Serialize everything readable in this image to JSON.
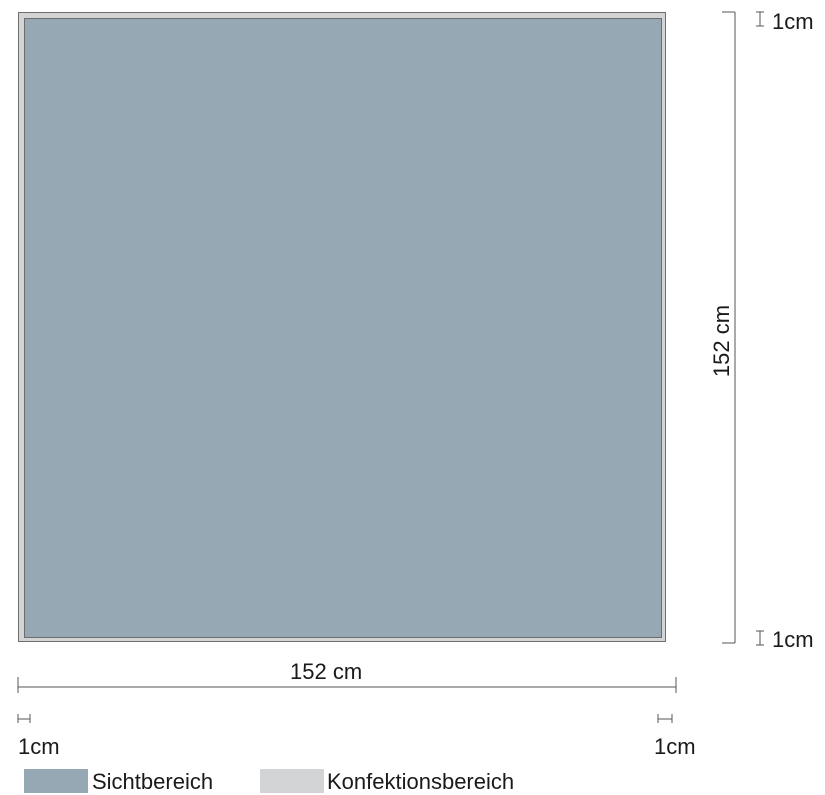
{
  "dimensions": {
    "width": {
      "value": 152,
      "label": "152 cm"
    },
    "height": {
      "value": 152,
      "label": "152 cm"
    },
    "margin_top": "1cm",
    "margin_bottom": "1cm",
    "margin_left": "1cm",
    "margin_right": "1cm"
  },
  "legend": [
    {
      "label": "Sichtbereich",
      "color": "#95a8b3"
    },
    {
      "label": "Konfektionsbereich",
      "color": "#d3d4d5"
    }
  ],
  "colors": {
    "visible_area": "#95a8b3",
    "finishing_area": "#d3d4d5",
    "line": "#6e6e6e"
  }
}
